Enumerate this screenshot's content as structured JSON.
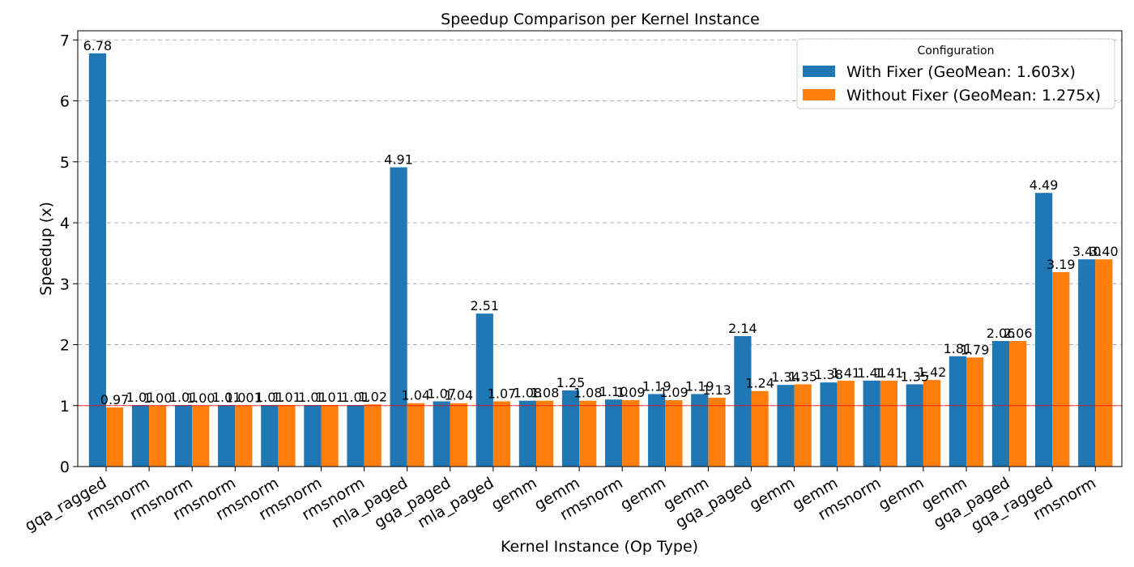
{
  "chart_data": {
    "type": "bar",
    "title": "Speedup Comparison per Kernel Instance",
    "xlabel": "Kernel Instance (Op Type)",
    "ylabel": "Speedup (x)",
    "ylim": [
      0,
      7.15
    ],
    "yticks": [
      0,
      1,
      2,
      3,
      4,
      5,
      6,
      7
    ],
    "grid": "y-dashed",
    "reference_line": {
      "y": 1.0,
      "color": "#ff0000"
    },
    "categories": [
      "gqa_ragged",
      "rmsnorm",
      "rmsnorm",
      "rmsnorm",
      "rmsnorm",
      "rmsnorm",
      "rmsnorm",
      "mla_paged",
      "gqa_paged",
      "mla_paged",
      "gemm",
      "gemm",
      "rmsnorm",
      "gemm",
      "gemm",
      "gqa_paged",
      "gemm",
      "gemm",
      "rmsnorm",
      "gemm",
      "gemm",
      "gqa_paged",
      "gqa_ragged",
      "rmsnorm"
    ],
    "series": [
      {
        "name": "With Fixer (GeoMean: 1.603x)",
        "color": "#1f77b4",
        "values": [
          6.78,
          1.01,
          1.01,
          1.01,
          1.01,
          1.01,
          1.01,
          4.91,
          1.07,
          2.51,
          1.08,
          1.25,
          1.1,
          1.19,
          1.19,
          2.14,
          1.34,
          1.38,
          1.41,
          1.35,
          1.81,
          2.06,
          4.49,
          3.4
        ],
        "labels": [
          "6.78",
          "1.01",
          "1.01",
          "1.01",
          "1.01",
          "1.01",
          "1.01",
          "4.91",
          "1.07",
          "2.51",
          "1.08",
          "1.25",
          "1.10",
          "1.19",
          "1.19",
          "2.14",
          "1.34",
          "1.38",
          "1.41",
          "1.35",
          "1.81",
          "2.06",
          "4.49",
          "3.40"
        ]
      },
      {
        "name": "Without Fixer (GeoMean: 1.275x)",
        "color": "#ff7f0e",
        "values": [
          0.97,
          1.0,
          1.0,
          1.001,
          1.01,
          1.01,
          1.02,
          1.04,
          1.04,
          1.07,
          1.08,
          1.08,
          1.09,
          1.09,
          1.13,
          1.24,
          1.35,
          1.41,
          1.41,
          1.42,
          1.79,
          2.06,
          3.19,
          3.4
        ],
        "labels": [
          "0.97",
          "1.00",
          "1.00",
          "1.001",
          "1.01",
          "1.01",
          "1.02",
          "1.04",
          "1.04",
          "1.07",
          "1.08",
          "1.08",
          "1.09",
          "1.09",
          "1.13",
          "1.24",
          "1.35",
          "1.41",
          "1.41",
          "1.42",
          "1.79",
          "2.06",
          "3.19",
          "3.40"
        ]
      }
    ],
    "legend": {
      "title": "Configuration",
      "placement": "top-right"
    }
  }
}
